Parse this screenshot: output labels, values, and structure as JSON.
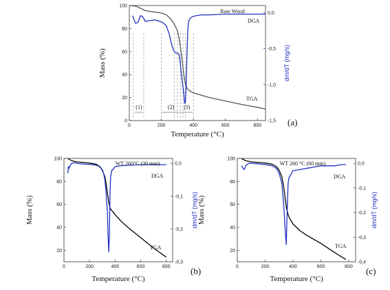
{
  "chart_data": [
    {
      "id": "a",
      "type": "line",
      "panel_label": "(a)",
      "annotation": "Raw Wood",
      "xlabel": "Temperature (°C)",
      "ylabel_left": "Mass (%)",
      "ylabel_right": "dm/dT (mg/s)",
      "xlim": [
        0,
        850
      ],
      "ylim_left": [
        0,
        100
      ],
      "ylim_right": [
        -1.5,
        0.1
      ],
      "x_ticks": [
        "0",
        "200",
        "400",
        "600",
        "800"
      ],
      "y_left_ticks": [
        "0",
        "20",
        "40",
        "60",
        "80",
        "100"
      ],
      "y_right_ticks": [
        "0,0",
        "-0,5",
        "-1,0",
        "-1,5"
      ],
      "right_tick_values": [
        0,
        -0.5,
        -1.0,
        -1.5
      ],
      "regions": [
        "(1)",
        "(2)",
        "(3)"
      ],
      "region_ranges": [
        [
          30,
          90
        ],
        [
          200,
          320
        ],
        [
          320,
          400
        ]
      ],
      "dashed_x": [
        25,
        90,
        200,
        280,
        300,
        320,
        335,
        350,
        400
      ],
      "colors": {
        "tga": "#555555",
        "dga": "#1f2fbf"
      },
      "series": [
        {
          "name": "TGA",
          "axis": "left",
          "x": [
            0,
            40,
            80,
            100,
            150,
            200,
            230,
            260,
            280,
            300,
            310,
            320,
            330,
            340,
            350,
            360,
            375,
            400,
            450,
            500,
            600,
            700,
            800,
            850
          ],
          "values": [
            100,
            99.5,
            97,
            95.5,
            94.5,
            93.5,
            92,
            88,
            84,
            78,
            72,
            63,
            52,
            40,
            32,
            28,
            26,
            24,
            22,
            20,
            17,
            14,
            11.5,
            10
          ]
        },
        {
          "name": "DGA",
          "axis": "right",
          "x": [
            20,
            30,
            40,
            55,
            70,
            85,
            100,
            130,
            160,
            190,
            210,
            230,
            250,
            265,
            280,
            290,
            300,
            310,
            318,
            325,
            332,
            340,
            345,
            350,
            355,
            360,
            365,
            370,
            380,
            390,
            400,
            420,
            450,
            500,
            600,
            700,
            800,
            850
          ],
          "values": [
            -0.04,
            -0.1,
            -0.15,
            -0.13,
            -0.04,
            -0.06,
            -0.12,
            -0.11,
            -0.1,
            -0.12,
            -0.14,
            -0.18,
            -0.3,
            -0.45,
            -0.54,
            -0.56,
            -0.56,
            -0.58,
            -0.7,
            -0.86,
            -0.98,
            -1.12,
            -1.26,
            -1.24,
            -1.0,
            -0.55,
            -0.25,
            -0.12,
            -0.08,
            -0.06,
            -0.05,
            -0.04,
            -0.03,
            -0.03,
            -0.02,
            -0.02,
            -0.02,
            -0.02
          ]
        }
      ]
    },
    {
      "id": "b",
      "type": "line",
      "panel_label": "(b)",
      "annotation": "WT  260°C (30 min)",
      "xlabel": "Temperature (°C)",
      "ylabel_left": "Mass (%)",
      "ylabel_right": "dm/dT (mg/s)",
      "xlim": [
        0,
        850
      ],
      "ylim_left": [
        10,
        100
      ],
      "ylim_right": [
        -0.3,
        0.015
      ],
      "x_ticks": [
        "0",
        "200",
        "400",
        "600",
        "800"
      ],
      "y_left_ticks": [
        "20",
        "40",
        "60",
        "80",
        "100"
      ],
      "y_right_ticks": [
        "0,0",
        "-0,1",
        "-0,2",
        "-0,3"
      ],
      "right_tick_values": [
        0,
        -0.1,
        -0.2,
        -0.3
      ],
      "colors": {
        "tga": "#000000",
        "dga": "#1f2fbf"
      },
      "series": [
        {
          "name": "TGA",
          "axis": "left",
          "x": [
            30,
            60,
            100,
            150,
            200,
            250,
            280,
            300,
            320,
            330,
            340,
            350,
            360,
            370,
            380,
            400,
            450,
            500,
            600,
            700,
            800
          ],
          "values": [
            100,
            98,
            97,
            96.5,
            96,
            95,
            93,
            90,
            84,
            78,
            70,
            62,
            57,
            55,
            54,
            51,
            45,
            40,
            31,
            22,
            14
          ]
        },
        {
          "name": "DGA",
          "axis": "right",
          "x": [
            30,
            35,
            40,
            50,
            60,
            80,
            100,
            150,
            200,
            240,
            270,
            290,
            310,
            320,
            330,
            340,
            345,
            350,
            355,
            360,
            365,
            370,
            375,
            380,
            390,
            400,
            450,
            500,
            600,
            700,
            800
          ],
          "values": [
            -0.03,
            -0.01,
            -0.015,
            -0.005,
            0.0,
            0.002,
            0.0,
            -0.002,
            -0.003,
            -0.005,
            -0.008,
            -0.015,
            -0.03,
            -0.05,
            -0.09,
            -0.15,
            -0.22,
            -0.27,
            -0.22,
            -0.1,
            -0.04,
            -0.03,
            -0.02,
            -0.02,
            -0.015,
            -0.01,
            -0.007,
            -0.006,
            -0.004,
            -0.004,
            -0.004
          ]
        }
      ]
    },
    {
      "id": "c",
      "type": "line",
      "panel_label": "(c)",
      "annotation": "WT 260 °C (60 min)",
      "xlabel": "Temperature (°C)",
      "ylabel_left": "Mass (%)",
      "ylabel_right": "dm/dT (mg/s)",
      "xlim": [
        0,
        850
      ],
      "ylim_left": [
        10,
        100
      ],
      "ylim_right": [
        -0.4,
        0.02
      ],
      "x_ticks": [
        "0",
        "200",
        "400",
        "600",
        "800"
      ],
      "y_left_ticks": [
        "20",
        "40",
        "60",
        "80",
        "100"
      ],
      "y_right_ticks": [
        "0,0",
        "-0,1",
        "-0,2",
        "-0,3",
        "-0,4"
      ],
      "right_tick_values": [
        0,
        -0.1,
        -0.2,
        -0.3,
        -0.4
      ],
      "colors": {
        "tga": "#000000",
        "dga": "#1f2fbf"
      },
      "series": [
        {
          "name": "TGA",
          "axis": "left",
          "x": [
            30,
            60,
            100,
            150,
            200,
            250,
            280,
            300,
            320,
            335,
            345,
            355,
            365,
            375,
            400,
            450,
            500,
            600,
            700,
            780
          ],
          "values": [
            100,
            98,
            97,
            96.5,
            96,
            95,
            93,
            90,
            84,
            74,
            64,
            56,
            51,
            48,
            43,
            37,
            33,
            26,
            18,
            12
          ]
        },
        {
          "name": "DGA",
          "axis": "right",
          "x": [
            30,
            40,
            50,
            60,
            80,
            100,
            150,
            200,
            250,
            280,
            300,
            320,
            335,
            345,
            352,
            358,
            365,
            370,
            380,
            400,
            450,
            500,
            550,
            600,
            650,
            700,
            750,
            780
          ],
          "values": [
            -0.01,
            -0.02,
            -0.025,
            -0.01,
            0.0,
            0.0,
            -0.002,
            -0.005,
            -0.01,
            -0.02,
            -0.04,
            -0.08,
            -0.18,
            -0.28,
            -0.33,
            -0.2,
            -0.08,
            -0.06,
            -0.05,
            -0.03,
            -0.025,
            -0.02,
            -0.015,
            -0.01,
            -0.01,
            -0.01,
            -0.005,
            -0.005
          ]
        }
      ]
    }
  ]
}
